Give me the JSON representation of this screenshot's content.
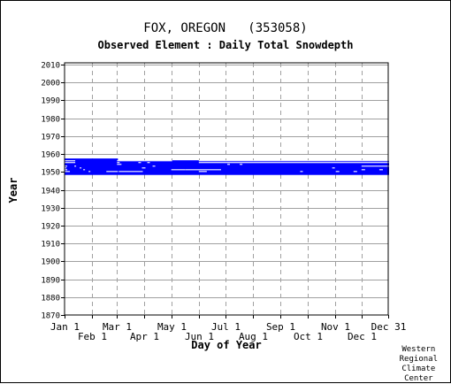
{
  "header": {
    "title": "FOX, OREGON   (353058)",
    "subtitle": "Observed Element : Daily Total Snowdepth"
  },
  "footer": {
    "credit": "Western\nRegional\nClimate\nCenter"
  },
  "chart_data": {
    "type": "scatter",
    "title": "FOX, OREGON   (353058)",
    "subtitle": "Observed Element : Daily Total Snowdepth",
    "xlabel": "Day of Year",
    "ylabel": "Year",
    "xlim": [
      1,
      365
    ],
    "ylim": [
      1870,
      2011
    ],
    "x_ticks": [
      {
        "label": "Jan 1",
        "day": 1,
        "row": 0
      },
      {
        "label": "Feb 1",
        "day": 32,
        "row": 1
      },
      {
        "label": "Mar 1",
        "day": 60,
        "row": 0
      },
      {
        "label": "Apr 1",
        "day": 91,
        "row": 1
      },
      {
        "label": "May 1",
        "day": 121,
        "row": 0
      },
      {
        "label": "Jun 1",
        "day": 152,
        "row": 1
      },
      {
        "label": "Jul 1",
        "day": 182,
        "row": 0
      },
      {
        "label": "Aug 1",
        "day": 213,
        "row": 1
      },
      {
        "label": "Sep 1",
        "day": 244,
        "row": 0
      },
      {
        "label": "Oct 1",
        "day": 274,
        "row": 1
      },
      {
        "label": "Nov 1",
        "day": 305,
        "row": 0
      },
      {
        "label": "Dec 1",
        "day": 335,
        "row": 1
      },
      {
        "label": "Dec 31",
        "day": 365,
        "row": 0
      }
    ],
    "y_ticks": [
      2010,
      2000,
      1990,
      1980,
      1970,
      1960,
      1950,
      1940,
      1930,
      1920,
      1910,
      1900,
      1890,
      1880,
      1870
    ],
    "grid": true,
    "series_color": "#0000ff",
    "grid_color": "#a0a0a0",
    "observed_years": [
      {
        "year": 1949,
        "from_day": 1,
        "to_day": 365
      },
      {
        "year": 1950,
        "from_day": 1,
        "to_day": 365
      },
      {
        "year": 1951,
        "from_day": 1,
        "to_day": 365
      },
      {
        "year": 1952,
        "from_day": 1,
        "to_day": 365
      },
      {
        "year": 1953,
        "from_day": 1,
        "to_day": 365
      },
      {
        "year": 1954,
        "from_day": 1,
        "to_day": 365
      },
      {
        "year": 1955,
        "from_day": 1,
        "to_day": 365
      },
      {
        "year": 1956,
        "from_day": 1,
        "to_day": 365
      },
      {
        "year": 1957,
        "from_day": 1,
        "to_day": 60
      }
    ],
    "missing_segments": [
      {
        "year": 1950,
        "from_day": 1,
        "to_day": 6
      },
      {
        "year": 1950,
        "from_day": 28,
        "to_day": 29
      },
      {
        "year": 1950,
        "from_day": 48,
        "to_day": 60
      },
      {
        "year": 1950,
        "from_day": 62,
        "to_day": 88
      },
      {
        "year": 1950,
        "from_day": 152,
        "to_day": 160
      },
      {
        "year": 1950,
        "from_day": 266,
        "to_day": 268
      },
      {
        "year": 1950,
        "from_day": 306,
        "to_day": 309
      },
      {
        "year": 1950,
        "from_day": 326,
        "to_day": 329
      },
      {
        "year": 1951,
        "from_day": 1,
        "to_day": 3
      },
      {
        "year": 1951,
        "from_day": 22,
        "to_day": 23
      },
      {
        "year": 1951,
        "from_day": 121,
        "to_day": 136
      },
      {
        "year": 1951,
        "from_day": 137,
        "to_day": 176
      },
      {
        "year": 1951,
        "from_day": 335,
        "to_day": 338
      },
      {
        "year": 1951,
        "from_day": 355,
        "to_day": 358
      },
      {
        "year": 1952,
        "from_day": 1,
        "to_day": 2
      },
      {
        "year": 1952,
        "from_day": 18,
        "to_day": 19
      },
      {
        "year": 1952,
        "from_day": 88,
        "to_day": 91
      },
      {
        "year": 1952,
        "from_day": 302,
        "to_day": 304
      },
      {
        "year": 1953,
        "from_day": 1,
        "to_day": 3
      },
      {
        "year": 1953,
        "from_day": 12,
        "to_day": 13
      },
      {
        "year": 1953,
        "from_day": 100,
        "to_day": 102
      },
      {
        "year": 1953,
        "from_day": 335,
        "to_day": 365
      },
      {
        "year": 1954,
        "from_day": 60,
        "to_day": 64
      },
      {
        "year": 1954,
        "from_day": 184,
        "to_day": 186
      },
      {
        "year": 1954,
        "from_day": 198,
        "to_day": 200
      },
      {
        "year": 1955,
        "from_day": 1,
        "to_day": 12
      },
      {
        "year": 1955,
        "from_day": 60,
        "to_day": 62
      },
      {
        "year": 1955,
        "from_day": 84,
        "to_day": 86
      },
      {
        "year": 1955,
        "from_day": 94,
        "to_day": 96
      },
      {
        "year": 1955,
        "from_day": 152,
        "to_day": 365
      },
      {
        "year": 1956,
        "from_day": 1,
        "to_day": 12
      },
      {
        "year": 1956,
        "from_day": 60,
        "to_day": 121
      },
      {
        "year": 1956,
        "from_day": 152,
        "to_day": 365
      }
    ]
  }
}
